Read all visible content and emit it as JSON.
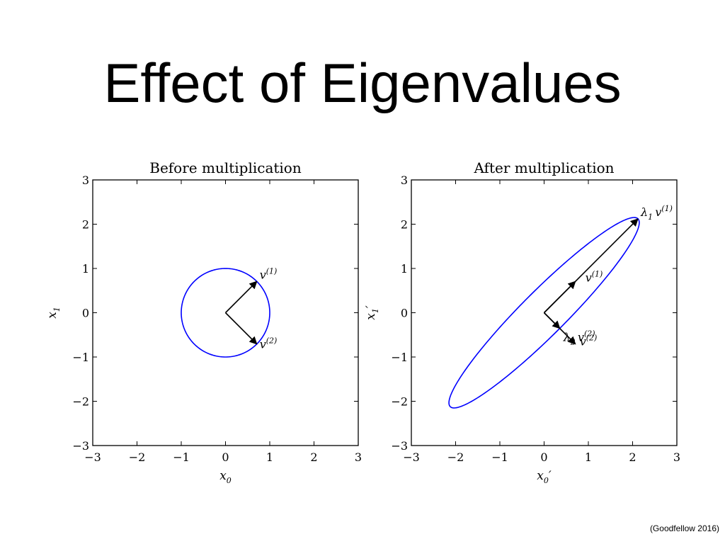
{
  "slide": {
    "title": "Effect of Eigenvalues",
    "credit": "(Goodfellow 2016)"
  },
  "chart_data": [
    {
      "type": "line",
      "title": "Before multiplication",
      "xlabel": "x0",
      "ylabel": "x1",
      "xlim": [
        -3,
        3
      ],
      "ylim": [
        -3,
        3
      ],
      "xticks": [
        -3,
        -2,
        -1,
        0,
        1,
        2,
        3
      ],
      "yticks": [
        -3,
        -2,
        -1,
        0,
        1,
        2,
        3
      ],
      "grid": false,
      "curve": {
        "shape": "ellipse",
        "center": [
          0,
          0
        ],
        "semi_axes": [
          1,
          1
        ],
        "angle_deg": 45,
        "color": "#0000ff"
      },
      "vectors": [
        {
          "label": "v(1)",
          "from": [
            0,
            0
          ],
          "to": [
            0.707,
            0.707
          ]
        },
        {
          "label": "v(2)",
          "from": [
            0,
            0
          ],
          "to": [
            0.707,
            -0.707
          ]
        }
      ]
    },
    {
      "type": "line",
      "title": "After multiplication",
      "xlabel": "x0′",
      "ylabel": "x1′",
      "xlim": [
        -3,
        3
      ],
      "ylim": [
        -3,
        3
      ],
      "xticks": [
        -3,
        -2,
        -1,
        0,
        1,
        2,
        3
      ],
      "yticks": [
        -3,
        -2,
        -1,
        0,
        1,
        2,
        3
      ],
      "grid": false,
      "curve": {
        "shape": "ellipse",
        "center": [
          0,
          0
        ],
        "semi_axes": [
          3,
          0.5
        ],
        "angle_deg": 45,
        "color": "#0000ff"
      },
      "vectors": [
        {
          "label": "λ1 v(1)",
          "from": [
            0,
            0
          ],
          "to": [
            2.12,
            2.12
          ]
        },
        {
          "label": "v(1)",
          "from": [
            0,
            0
          ],
          "to": [
            0.707,
            0.707
          ]
        },
        {
          "label": "λ2 v(2)",
          "from": [
            0,
            0
          ],
          "to": [
            0.354,
            -0.354
          ]
        },
        {
          "label": "v(2)",
          "from": [
            0,
            0
          ],
          "to": [
            0.707,
            -0.707
          ]
        }
      ]
    }
  ]
}
